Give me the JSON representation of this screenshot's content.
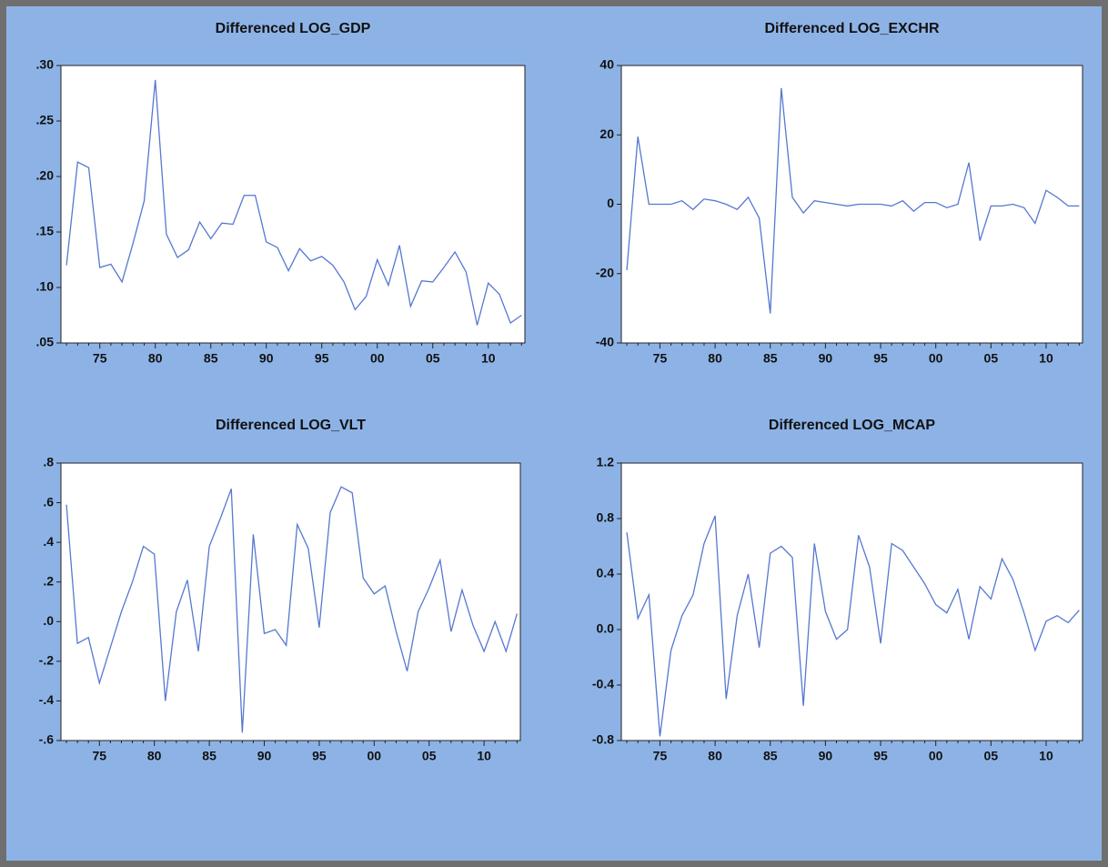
{
  "chart_data": [
    {
      "type": "line",
      "title": "Differenced LOG_GDP",
      "categories": [
        null,
        null,
        null,
        "75",
        null,
        null,
        null,
        null,
        "80",
        null,
        null,
        null,
        null,
        "85",
        null,
        null,
        null,
        null,
        "90",
        null,
        null,
        null,
        null,
        "95",
        null,
        null,
        null,
        null,
        "00",
        null,
        null,
        null,
        null,
        "05",
        null,
        null,
        null,
        null,
        "10",
        null,
        null,
        null
      ],
      "series": [
        {
          "color": "#5578d0",
          "values": [
            0.12,
            0.213,
            0.208,
            0.118,
            0.121,
            0.105,
            0.14,
            0.178,
            0.287,
            0.148,
            0.127,
            0.134,
            0.159,
            0.144,
            0.158,
            0.157,
            0.183,
            0.183,
            0.141,
            0.136,
            0.115,
            0.135,
            0.124,
            0.128,
            0.12,
            0.105,
            0.08,
            0.092,
            0.125,
            0.102,
            0.138,
            0.083,
            0.106,
            0.105,
            0.118,
            0.132,
            0.114,
            0.066,
            0.104,
            0.094,
            0.068,
            0.075
          ]
        }
      ],
      "ylim": [
        0.05,
        0.3
      ],
      "yticks": [
        {
          "value": 0.05,
          "label": ".05"
        },
        {
          "value": 0.1,
          "label": ".10"
        },
        {
          "value": 0.15,
          "label": ".15"
        },
        {
          "value": 0.2,
          "label": ".20"
        },
        {
          "value": 0.25,
          "label": ".25"
        },
        {
          "value": 0.3,
          "label": ".30"
        }
      ]
    },
    {
      "type": "line",
      "title": "Differenced LOG_EXCHR",
      "categories": [
        null,
        null,
        null,
        "75",
        null,
        null,
        null,
        null,
        "80",
        null,
        null,
        null,
        null,
        "85",
        null,
        null,
        null,
        null,
        "90",
        null,
        null,
        null,
        null,
        "95",
        null,
        null,
        null,
        null,
        "00",
        null,
        null,
        null,
        null,
        "05",
        null,
        null,
        null,
        null,
        "10",
        null,
        null,
        null
      ],
      "series": [
        {
          "color": "#5578d0",
          "values": [
            -19,
            19.5,
            0,
            0,
            0,
            1,
            -1.5,
            1.5,
            1,
            0,
            -1.5,
            2,
            -4,
            -31.5,
            33.5,
            2,
            -2.5,
            1,
            0.5,
            0,
            -0.5,
            0,
            0,
            0,
            -0.5,
            1,
            -2,
            0.5,
            0.5,
            -1,
            0,
            12,
            -10.5,
            -0.5,
            -0.5,
            0,
            -1,
            -5.5,
            4,
            2,
            -0.5,
            -0.5
          ]
        }
      ],
      "ylim": [
        -40,
        40
      ],
      "yticks": [
        -40,
        -20,
        0,
        20,
        40
      ]
    },
    {
      "type": "line",
      "title": "Differenced LOG_VLT",
      "categories": [
        null,
        null,
        null,
        "75",
        null,
        null,
        null,
        null,
        "80",
        null,
        null,
        null,
        null,
        "85",
        null,
        null,
        null,
        null,
        "90",
        null,
        null,
        null,
        null,
        "95",
        null,
        null,
        null,
        null,
        "00",
        null,
        null,
        null,
        null,
        "05",
        null,
        null,
        null,
        null,
        "10",
        null,
        null,
        null
      ],
      "series": [
        {
          "color": "#5578d0",
          "values": [
            0.59,
            -0.11,
            -0.08,
            -0.31,
            -0.13,
            0.05,
            0.2,
            0.38,
            0.34,
            -0.4,
            0.05,
            0.21,
            -0.15,
            0.38,
            0.52,
            0.67,
            -0.56,
            0.44,
            -0.06,
            -0.04,
            -0.12,
            0.49,
            0.37,
            -0.03,
            0.55,
            0.68,
            0.65,
            0.22,
            0.14,
            0.18,
            -0.05,
            -0.25,
            0.05,
            0.17,
            0.31,
            -0.05,
            0.16,
            -0.02,
            -0.15,
            0,
            -0.15,
            0.04
          ]
        }
      ],
      "ylim": [
        -0.6,
        0.8
      ],
      "yticks": [
        {
          "value": -0.6,
          "label": "-.6"
        },
        {
          "value": -0.4,
          "label": "-.4"
        },
        {
          "value": -0.2,
          "label": "-.2"
        },
        {
          "value": 0,
          "label": ".0"
        },
        {
          "value": 0.2,
          "label": ".2"
        },
        {
          "value": 0.4,
          "label": ".4"
        },
        {
          "value": 0.6,
          "label": ".6"
        },
        {
          "value": 0.8,
          "label": ".8"
        }
      ]
    },
    {
      "type": "line",
      "title": "Differenced LOG_MCAP",
      "categories": [
        null,
        null,
        null,
        "75",
        null,
        null,
        null,
        null,
        "80",
        null,
        null,
        null,
        null,
        "85",
        null,
        null,
        null,
        null,
        "90",
        null,
        null,
        null,
        null,
        "95",
        null,
        null,
        null,
        null,
        "00",
        null,
        null,
        null,
        null,
        "05",
        null,
        null,
        null,
        null,
        "10",
        null,
        null,
        null
      ],
      "series": [
        {
          "color": "#5578d0",
          "values": [
            0.7,
            0.08,
            0.25,
            -0.77,
            -0.15,
            0.1,
            0.25,
            0.62,
            0.82,
            -0.5,
            0.1,
            0.4,
            -0.13,
            0.55,
            0.6,
            0.52,
            -0.55,
            0.62,
            0.13,
            -0.07,
            0,
            0.68,
            0.45,
            -0.1,
            0.62,
            0.57,
            0.45,
            0.33,
            0.18,
            0.12,
            0.29,
            -0.07,
            0.31,
            0.22,
            0.51,
            0.36,
            0.12,
            -0.15,
            0.06,
            0.1,
            0.05,
            0.14
          ]
        }
      ],
      "ylim": [
        -0.8,
        1.2
      ],
      "yticks": [
        -0.8,
        -0.4,
        {
          "value": 0,
          "label": "0.0"
        },
        0.4,
        0.8,
        1.2
      ]
    }
  ]
}
